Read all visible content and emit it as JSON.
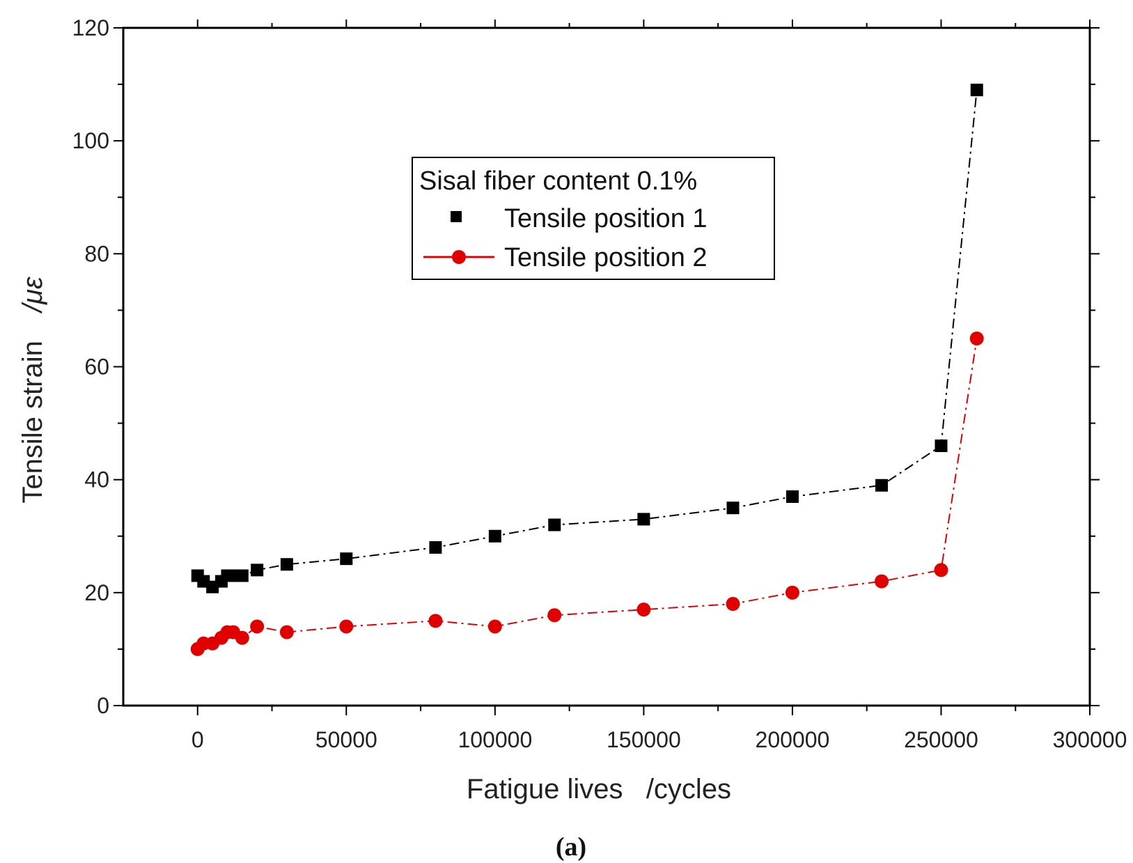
{
  "caption": "(a)",
  "chart_data": {
    "type": "line",
    "xlabel": "Fatigue lives   /cycles",
    "ylabel_text": "Tensile strain",
    "ylabel_unit": "/με",
    "xlim": [
      -25000,
      300000
    ],
    "ylim": [
      0,
      120
    ],
    "x_ticks": [
      0,
      50000,
      100000,
      150000,
      200000,
      250000,
      300000
    ],
    "y_ticks": [
      0,
      20,
      40,
      60,
      80,
      100,
      120
    ],
    "grid": false,
    "legend": {
      "title": "Sisal fiber content 0.1%",
      "placement": "upper-middle"
    },
    "series": [
      {
        "name": "Tensile position 1",
        "color": "#000000",
        "marker": "square",
        "line_style": "dash-dot",
        "x": [
          0,
          2000,
          5000,
          8000,
          10000,
          12000,
          15000,
          20000,
          30000,
          50000,
          80000,
          100000,
          120000,
          150000,
          180000,
          200000,
          230000,
          250000,
          262000
        ],
        "y": [
          23,
          22,
          21,
          22,
          23,
          23,
          23,
          24,
          25,
          26,
          28,
          30,
          32,
          33,
          35,
          37,
          39,
          46,
          109
        ]
      },
      {
        "name": "Tensile position 2",
        "color": "#e00000",
        "marker": "circle",
        "line_style": "dash-dot",
        "x": [
          0,
          2000,
          5000,
          8000,
          10000,
          12000,
          15000,
          20000,
          30000,
          50000,
          80000,
          100000,
          120000,
          150000,
          180000,
          200000,
          230000,
          250000,
          262000
        ],
        "y": [
          10,
          11,
          11,
          12,
          13,
          13,
          12,
          14,
          13,
          14,
          15,
          14,
          16,
          17,
          18,
          20,
          22,
          24,
          65
        ]
      }
    ]
  }
}
